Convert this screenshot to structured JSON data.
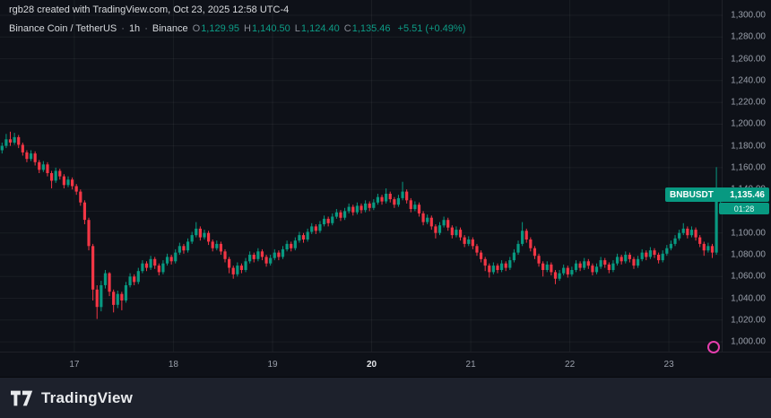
{
  "attribution": "rgb28 created with TradingView.com, Oct 23, 2025 12:58 UTC-4",
  "legend": {
    "title": "Binance Coin / TetherUS",
    "separator": "·",
    "interval": "1h",
    "exchange": "Binance",
    "o_label": "O",
    "o_value": "1,129.95",
    "h_label": "H",
    "h_value": "1,140.50",
    "l_label": "L",
    "l_value": "1,124.40",
    "c_label": "C",
    "c_value": "1,135.46",
    "change": "+5.51 (+0.49%)"
  },
  "price_label": {
    "symbol": "BNBUSDT",
    "price": "1,135.46",
    "countdown": "01:28"
  },
  "footer": {
    "logo_text": "TradingView"
  },
  "colors": {
    "background": "#0e1118",
    "up": "#089981",
    "down": "#f23645",
    "grid": "rgba(255,255,255,0.05)",
    "axis_text": "#9aa0ab",
    "badge_bg": "#089981",
    "bubble_accent": "#e53fae"
  },
  "price_axis": {
    "ticks": [
      {
        "label": "1,300.00",
        "value": 1300
      },
      {
        "label": "1,280.00",
        "value": 1280
      },
      {
        "label": "1,260.00",
        "value": 1260
      },
      {
        "label": "1,240.00",
        "value": 1240
      },
      {
        "label": "1,220.00",
        "value": 1220
      },
      {
        "label": "1,200.00",
        "value": 1200
      },
      {
        "label": "1,180.00",
        "value": 1180
      },
      {
        "label": "1,160.00",
        "value": 1160
      },
      {
        "label": "1,140.00",
        "value": 1140
      },
      {
        "label": "1,120.00",
        "value": 1120
      },
      {
        "label": "1,100.00",
        "value": 1100
      },
      {
        "label": "1,080.00",
        "value": 1080
      },
      {
        "label": "1,060.00",
        "value": 1060
      },
      {
        "label": "1,040.00",
        "value": 1040
      },
      {
        "label": "1,020.00",
        "value": 1020
      },
      {
        "label": "1,000.00",
        "value": 1000
      }
    ]
  },
  "chart_data": {
    "type": "candlestick",
    "title": "Binance Coin / TetherUS · 1h · Binance",
    "symbol": "BNBUSDT",
    "interval": "1h",
    "last_price": 1135.46,
    "change": "+5.51 (+0.49%)",
    "y_range": [
      991,
      1314
    ],
    "ohlc_format": [
      "open",
      "high",
      "low",
      "close"
    ],
    "day_ticks": [
      {
        "label": "17",
        "index": 18,
        "strong": false
      },
      {
        "label": "18",
        "index": 42,
        "strong": false
      },
      {
        "label": "19",
        "index": 66,
        "strong": false
      },
      {
        "label": "20",
        "index": 90,
        "strong": true
      },
      {
        "label": "21",
        "index": 114,
        "strong": false
      },
      {
        "label": "22",
        "index": 138,
        "strong": false
      },
      {
        "label": "23",
        "index": 162,
        "strong": false
      }
    ],
    "candles": [
      [
        1176,
        1183,
        1173,
        1180
      ],
      [
        1180,
        1191,
        1178,
        1186
      ],
      [
        1186,
        1193,
        1180,
        1183
      ],
      [
        1183,
        1192,
        1181,
        1188
      ],
      [
        1188,
        1190,
        1178,
        1181
      ],
      [
        1181,
        1183,
        1171,
        1174
      ],
      [
        1174,
        1176,
        1165,
        1168
      ],
      [
        1168,
        1176,
        1166,
        1173
      ],
      [
        1173,
        1175,
        1162,
        1165
      ],
      [
        1165,
        1167,
        1155,
        1158
      ],
      [
        1158,
        1166,
        1156,
        1163
      ],
      [
        1163,
        1165,
        1152,
        1155
      ],
      [
        1155,
        1157,
        1141,
        1148
      ],
      [
        1148,
        1160,
        1146,
        1157
      ],
      [
        1157,
        1159,
        1149,
        1152
      ],
      [
        1152,
        1154,
        1141,
        1144
      ],
      [
        1144,
        1152,
        1142,
        1149
      ],
      [
        1149,
        1151,
        1140,
        1143
      ],
      [
        1143,
        1145,
        1135,
        1138
      ],
      [
        1138,
        1140,
        1125,
        1128
      ],
      [
        1128,
        1130,
        1108,
        1112
      ],
      [
        1112,
        1114,
        1084,
        1088
      ],
      [
        1088,
        1090,
        1038,
        1048
      ],
      [
        1048,
        1052,
        1021,
        1032
      ],
      [
        1032,
        1056,
        1028,
        1052
      ],
      [
        1052,
        1066,
        1049,
        1063
      ],
      [
        1063,
        1064,
        1042,
        1046
      ],
      [
        1046,
        1048,
        1027,
        1034
      ],
      [
        1034,
        1047,
        1031,
        1044
      ],
      [
        1044,
        1046,
        1029,
        1038
      ],
      [
        1038,
        1055,
        1036,
        1052
      ],
      [
        1052,
        1063,
        1050,
        1060
      ],
      [
        1060,
        1062,
        1052,
        1055
      ],
      [
        1055,
        1068,
        1053,
        1065
      ],
      [
        1065,
        1075,
        1063,
        1072
      ],
      [
        1072,
        1074,
        1065,
        1068
      ],
      [
        1068,
        1079,
        1066,
        1076
      ],
      [
        1076,
        1078,
        1067,
        1070
      ],
      [
        1070,
        1072,
        1061,
        1064
      ],
      [
        1064,
        1075,
        1062,
        1072
      ],
      [
        1072,
        1081,
        1070,
        1078
      ],
      [
        1078,
        1080,
        1071,
        1074
      ],
      [
        1074,
        1085,
        1072,
        1082
      ],
      [
        1082,
        1091,
        1080,
        1088
      ],
      [
        1088,
        1090,
        1081,
        1084
      ],
      [
        1084,
        1095,
        1082,
        1092
      ],
      [
        1092,
        1101,
        1090,
        1098
      ],
      [
        1098,
        1110,
        1096,
        1104
      ],
      [
        1104,
        1106,
        1093,
        1096
      ],
      [
        1096,
        1103,
        1094,
        1100
      ],
      [
        1100,
        1102,
        1089,
        1092
      ],
      [
        1092,
        1094,
        1083,
        1086
      ],
      [
        1086,
        1093,
        1084,
        1090
      ],
      [
        1090,
        1092,
        1080,
        1083
      ],
      [
        1083,
        1085,
        1073,
        1076
      ],
      [
        1076,
        1078,
        1063,
        1068
      ],
      [
        1068,
        1070,
        1058,
        1062
      ],
      [
        1062,
        1073,
        1060,
        1070
      ],
      [
        1070,
        1072,
        1063,
        1066
      ],
      [
        1066,
        1077,
        1064,
        1074
      ],
      [
        1074,
        1083,
        1072,
        1080
      ],
      [
        1080,
        1082,
        1073,
        1076
      ],
      [
        1076,
        1086,
        1074,
        1083
      ],
      [
        1083,
        1085,
        1075,
        1078
      ],
      [
        1078,
        1080,
        1069,
        1072
      ],
      [
        1072,
        1080,
        1070,
        1077
      ],
      [
        1077,
        1085,
        1075,
        1082
      ],
      [
        1082,
        1084,
        1075,
        1078
      ],
      [
        1078,
        1088,
        1076,
        1085
      ],
      [
        1085,
        1093,
        1083,
        1090
      ],
      [
        1090,
        1092,
        1083,
        1086
      ],
      [
        1086,
        1096,
        1084,
        1093
      ],
      [
        1093,
        1101,
        1091,
        1098
      ],
      [
        1098,
        1100,
        1091,
        1094
      ],
      [
        1094,
        1104,
        1092,
        1101
      ],
      [
        1101,
        1109,
        1099,
        1106
      ],
      [
        1106,
        1108,
        1099,
        1102
      ],
      [
        1102,
        1111,
        1100,
        1108
      ],
      [
        1108,
        1116,
        1106,
        1113
      ],
      [
        1113,
        1115,
        1106,
        1109
      ],
      [
        1109,
        1118,
        1107,
        1115
      ],
      [
        1115,
        1122,
        1113,
        1119
      ],
      [
        1119,
        1121,
        1111,
        1114
      ],
      [
        1114,
        1123,
        1112,
        1120
      ],
      [
        1120,
        1127,
        1118,
        1124
      ],
      [
        1124,
        1126,
        1116,
        1119
      ],
      [
        1119,
        1128,
        1117,
        1125
      ],
      [
        1125,
        1127,
        1118,
        1121
      ],
      [
        1121,
        1130,
        1119,
        1127
      ],
      [
        1127,
        1129,
        1120,
        1123
      ],
      [
        1123,
        1131,
        1121,
        1128
      ],
      [
        1128,
        1136,
        1126,
        1133
      ],
      [
        1133,
        1135,
        1126,
        1129
      ],
      [
        1129,
        1141,
        1127,
        1136
      ],
      [
        1136,
        1138,
        1128,
        1131
      ],
      [
        1131,
        1133,
        1123,
        1126
      ],
      [
        1126,
        1135,
        1124,
        1132
      ],
      [
        1132,
        1147,
        1130,
        1138
      ],
      [
        1138,
        1140,
        1127,
        1130
      ],
      [
        1130,
        1132,
        1119,
        1122
      ],
      [
        1122,
        1129,
        1120,
        1126
      ],
      [
        1126,
        1128,
        1115,
        1118
      ],
      [
        1118,
        1120,
        1107,
        1110
      ],
      [
        1110,
        1117,
        1108,
        1114
      ],
      [
        1114,
        1116,
        1103,
        1106
      ],
      [
        1106,
        1108,
        1095,
        1100
      ],
      [
        1100,
        1110,
        1098,
        1107
      ],
      [
        1107,
        1115,
        1105,
        1112
      ],
      [
        1112,
        1114,
        1102,
        1105
      ],
      [
        1105,
        1107,
        1095,
        1098
      ],
      [
        1098,
        1106,
        1096,
        1103
      ],
      [
        1103,
        1105,
        1093,
        1096
      ],
      [
        1096,
        1098,
        1087,
        1090
      ],
      [
        1090,
        1097,
        1088,
        1094
      ],
      [
        1094,
        1096,
        1085,
        1088
      ],
      [
        1088,
        1090,
        1079,
        1082
      ],
      [
        1082,
        1084,
        1073,
        1076
      ],
      [
        1076,
        1078,
        1065,
        1070
      ],
      [
        1070,
        1072,
        1059,
        1064
      ],
      [
        1064,
        1073,
        1062,
        1070
      ],
      [
        1070,
        1072,
        1063,
        1066
      ],
      [
        1066,
        1075,
        1064,
        1072
      ],
      [
        1072,
        1074,
        1065,
        1068
      ],
      [
        1068,
        1078,
        1066,
        1075
      ],
      [
        1075,
        1085,
        1073,
        1082
      ],
      [
        1082,
        1093,
        1080,
        1090
      ],
      [
        1090,
        1110,
        1088,
        1102
      ],
      [
        1102,
        1104,
        1091,
        1094
      ],
      [
        1094,
        1096,
        1083,
        1086
      ],
      [
        1086,
        1088,
        1076,
        1079
      ],
      [
        1079,
        1081,
        1069,
        1072
      ],
      [
        1072,
        1074,
        1060,
        1066
      ],
      [
        1066,
        1074,
        1064,
        1071
      ],
      [
        1071,
        1073,
        1061,
        1064
      ],
      [
        1064,
        1066,
        1053,
        1058
      ],
      [
        1058,
        1066,
        1056,
        1063
      ],
      [
        1063,
        1071,
        1061,
        1068
      ],
      [
        1068,
        1070,
        1059,
        1062
      ],
      [
        1062,
        1069,
        1060,
        1066
      ],
      [
        1066,
        1075,
        1064,
        1072
      ],
      [
        1072,
        1074,
        1065,
        1068
      ],
      [
        1068,
        1077,
        1066,
        1074
      ],
      [
        1074,
        1076,
        1067,
        1070
      ],
      [
        1070,
        1072,
        1061,
        1064
      ],
      [
        1064,
        1072,
        1062,
        1069
      ],
      [
        1069,
        1078,
        1067,
        1075
      ],
      [
        1075,
        1077,
        1068,
        1071
      ],
      [
        1071,
        1073,
        1063,
        1066
      ],
      [
        1066,
        1075,
        1064,
        1072
      ],
      [
        1072,
        1081,
        1070,
        1078
      ],
      [
        1078,
        1080,
        1071,
        1074
      ],
      [
        1074,
        1083,
        1072,
        1080
      ],
      [
        1080,
        1082,
        1073,
        1076
      ],
      [
        1076,
        1078,
        1067,
        1070
      ],
      [
        1070,
        1079,
        1068,
        1076
      ],
      [
        1076,
        1085,
        1074,
        1082
      ],
      [
        1082,
        1084,
        1075,
        1078
      ],
      [
        1078,
        1087,
        1076,
        1084
      ],
      [
        1084,
        1086,
        1077,
        1080
      ],
      [
        1080,
        1082,
        1072,
        1075
      ],
      [
        1075,
        1084,
        1073,
        1081
      ],
      [
        1081,
        1089,
        1079,
        1086
      ],
      [
        1086,
        1093,
        1084,
        1090
      ],
      [
        1090,
        1098,
        1088,
        1095
      ],
      [
        1095,
        1103,
        1093,
        1100
      ],
      [
        1100,
        1109,
        1098,
        1104
      ],
      [
        1104,
        1106,
        1095,
        1098
      ],
      [
        1098,
        1106,
        1096,
        1103
      ],
      [
        1103,
        1105,
        1093,
        1096
      ],
      [
        1096,
        1098,
        1087,
        1090
      ],
      [
        1090,
        1092,
        1079,
        1084
      ],
      [
        1084,
        1091,
        1082,
        1088
      ],
      [
        1088,
        1090,
        1077,
        1082
      ],
      [
        1082,
        1160.5,
        1080,
        1130
      ],
      [
        1129.95,
        1140.5,
        1124.4,
        1135.46
      ]
    ]
  }
}
